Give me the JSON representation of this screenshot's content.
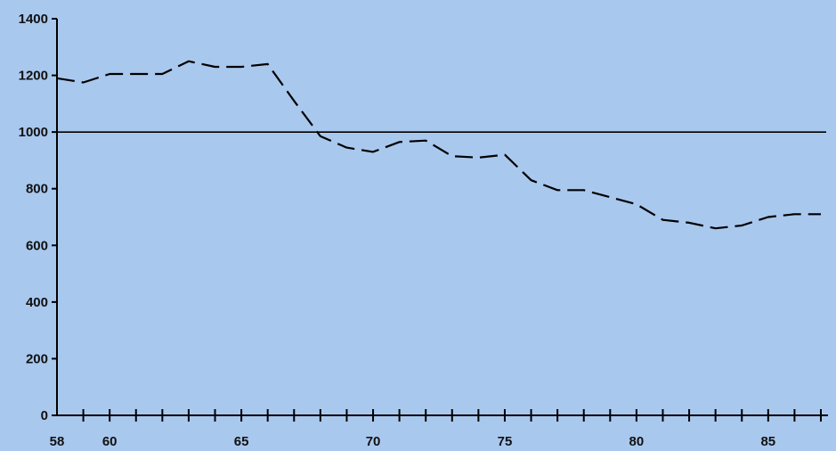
{
  "chart_data": {
    "type": "line",
    "title": "",
    "xlabel": "",
    "ylabel": "",
    "xlim": [
      58,
      87
    ],
    "ylim": [
      0,
      1400
    ],
    "grid": false,
    "y_ticks": [
      "0",
      "200",
      "400",
      "600",
      "800",
      "1000",
      "1200",
      "1400"
    ],
    "x_ticks": [
      "58",
      "60",
      "65",
      "70",
      "75",
      "80",
      "85"
    ],
    "reference_line": 1000,
    "series": [
      {
        "line_style": "dashed",
        "x": [
          58,
          59,
          60,
          61,
          62,
          63,
          64,
          65,
          66,
          67,
          68,
          69,
          70,
          71,
          72,
          73,
          74,
          75,
          76,
          77,
          78,
          79,
          80,
          81,
          82,
          83,
          84,
          85,
          86,
          87
        ],
        "y": [
          1190,
          1175,
          1205,
          1205,
          1205,
          1250,
          1230,
          1230,
          1240,
          1110,
          985,
          945,
          930,
          965,
          970,
          915,
          910,
          920,
          830,
          795,
          795,
          770,
          745,
          690,
          680,
          660,
          670,
          700,
          710,
          710
        ]
      }
    ],
    "colors": {
      "background": "#a9c8ee",
      "line": "#000000"
    }
  }
}
